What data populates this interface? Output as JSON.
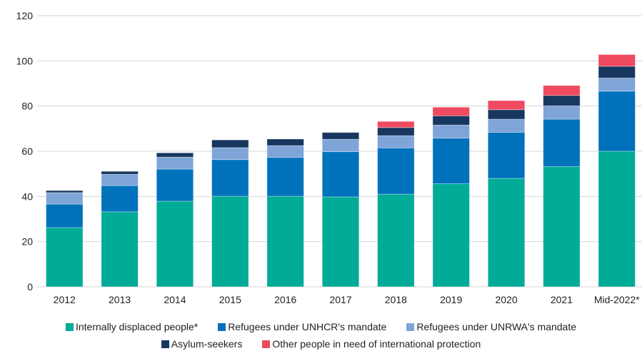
{
  "chart_data": {
    "type": "bar",
    "stacked": true,
    "title": "",
    "xlabel": "",
    "ylabel": "",
    "ylim": [
      0,
      120
    ],
    "yticks": [
      0,
      20,
      40,
      60,
      80,
      100,
      120
    ],
    "grid": true,
    "legend_position": "bottom",
    "categories": [
      "2012",
      "2013",
      "2014",
      "2015",
      "2016",
      "2017",
      "2018",
      "2019",
      "2020",
      "2021",
      "Mid-2022*"
    ],
    "series": [
      {
        "name": "Internally displaced people*",
        "color": "#00AB98",
        "values": [
          26.2,
          33.2,
          37.9,
          40.1,
          40.1,
          39.8,
          41.0,
          45.6,
          48.0,
          53.2,
          60.0
        ]
      },
      {
        "name": "Refugees under UNHCR's mandate",
        "color": "#0072BC",
        "values": [
          10.4,
          11.6,
          14.2,
          16.2,
          17.2,
          20.0,
          20.5,
          20.2,
          20.4,
          21.0,
          26.6
        ]
      },
      {
        "name": "Refugees under UNRWA's mandate",
        "color": "#7FA5D8",
        "values": [
          5.1,
          5.0,
          5.3,
          5.3,
          5.2,
          5.5,
          5.4,
          5.8,
          5.8,
          5.9,
          5.8
        ]
      },
      {
        "name": "Asylum-seekers",
        "color": "#18375F",
        "values": [
          0.9,
          1.3,
          1.9,
          3.4,
          2.9,
          3.0,
          3.6,
          4.1,
          4.2,
          4.6,
          5.2
        ]
      },
      {
        "name": "Other people in need of international protection",
        "color": "#EF4A60",
        "values": [
          0,
          0,
          0,
          0,
          0,
          0,
          2.7,
          3.8,
          4.0,
          4.4,
          5.2
        ]
      }
    ]
  },
  "legend": {
    "rows": [
      [
        0,
        1,
        2
      ],
      [
        3,
        4
      ]
    ]
  }
}
